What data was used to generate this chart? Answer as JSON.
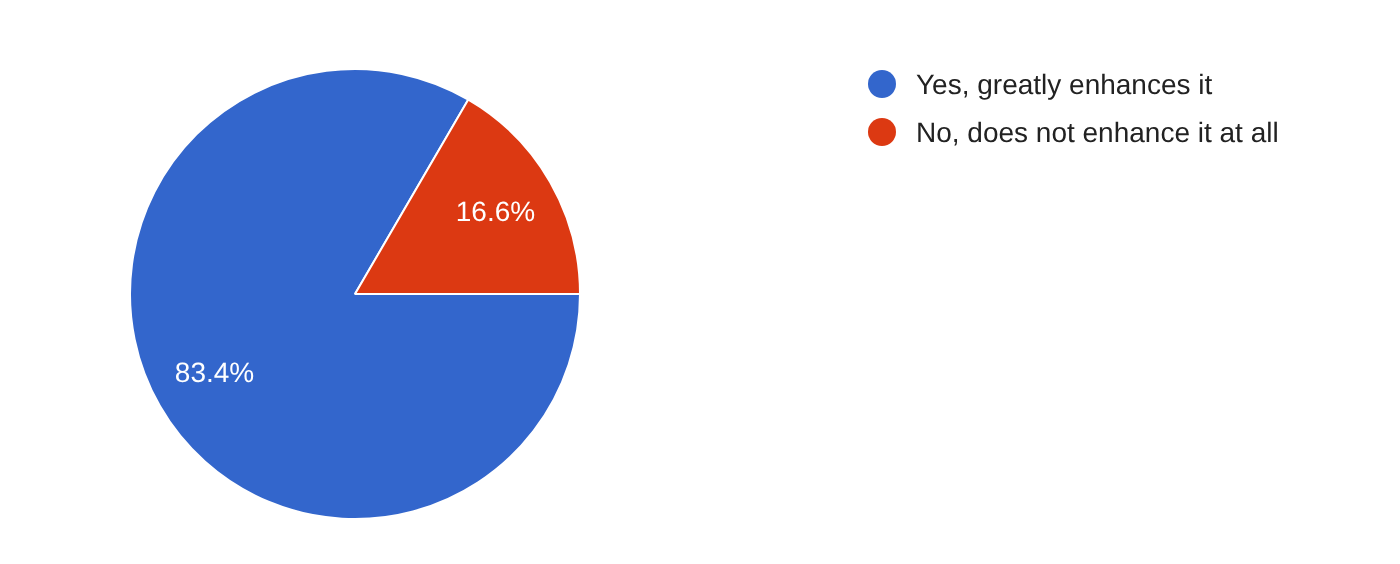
{
  "chart_data": {
    "type": "pie",
    "categories": [
      "Yes, greatly enhances it",
      "No, does not enhance it at all"
    ],
    "values": [
      83.4,
      16.6
    ],
    "colors": [
      "#3366cc",
      "#dc3912"
    ],
    "value_labels": [
      "83.4%",
      "16.6%"
    ],
    "legend": "top right"
  }
}
